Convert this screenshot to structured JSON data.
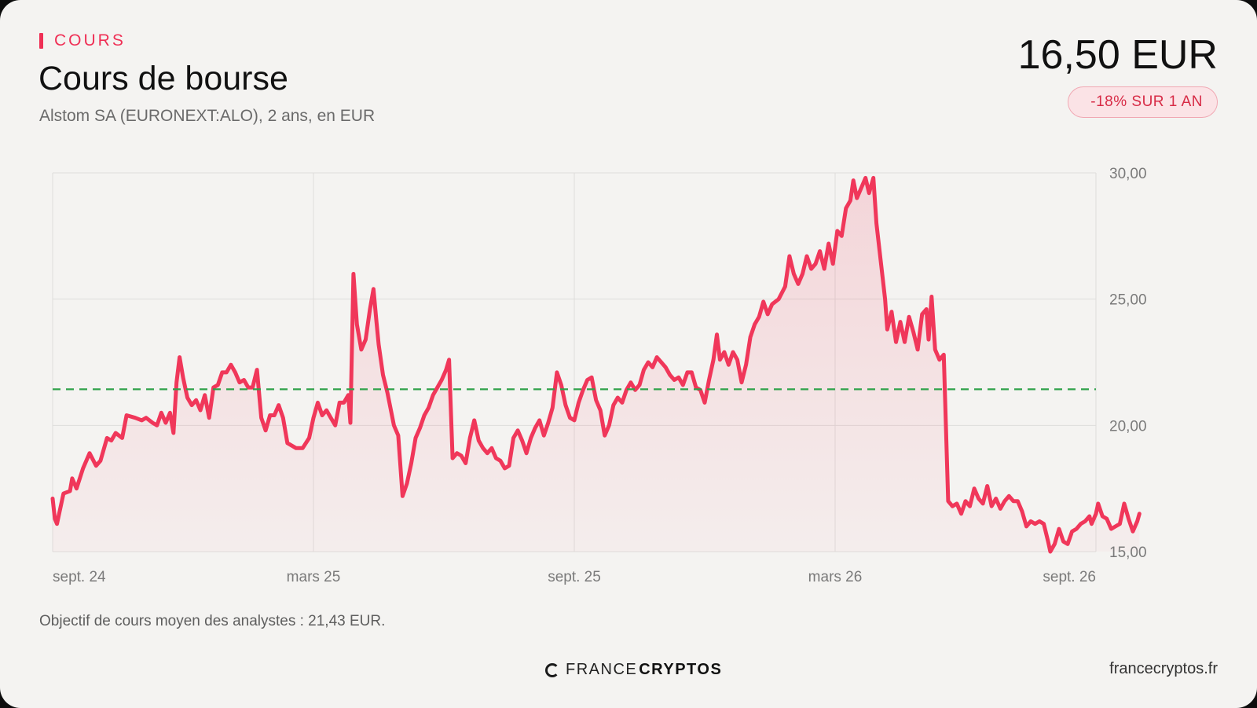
{
  "header": {
    "kicker": "COURS",
    "title": "Cours de bourse",
    "subtitle": "Alstom SA (EURONEXT:ALO), 2 ans, en EUR",
    "price": "16,50 EUR",
    "change_badge": "-18% SUR 1 AN"
  },
  "footer": {
    "note": "Objectif de cours moyen des analystes : 21,43 EUR.",
    "brand_light": "FRANCE",
    "brand_bold": "CRYPTOS",
    "site": "francecryptos.fr"
  },
  "colors": {
    "line": "#f0375a",
    "target_line": "#2ea24a",
    "kicker": "#ef2f55",
    "badge_text": "#d72b46"
  },
  "chart_data": {
    "type": "line",
    "title": "Cours de bourse",
    "xlabel": "",
    "ylabel": "",
    "x_range": [
      0,
      24
    ],
    "ylim": [
      15,
      30
    ],
    "y_ticks": [
      15,
      20,
      25,
      30
    ],
    "y_tick_labels": [
      "15,00",
      "20,00",
      "25,00",
      "30,00"
    ],
    "x_ticks": [
      {
        "x": 0,
        "label": "sept. 24"
      },
      {
        "x": 6,
        "label": "mars 25"
      },
      {
        "x": 12,
        "label": "sept. 25"
      },
      {
        "x": 18,
        "label": "mars 26"
      },
      {
        "x": 24,
        "label": "sept. 26"
      }
    ],
    "grid": true,
    "target_value": 21.43,
    "series": [
      {
        "values": [
          [
            0.0,
            17.1
          ],
          [
            0.05,
            16.3
          ],
          [
            0.1,
            16.1
          ],
          [
            0.25,
            17.3
          ],
          [
            0.4,
            17.4
          ],
          [
            0.45,
            17.9
          ],
          [
            0.55,
            17.5
          ],
          [
            0.7,
            18.3
          ],
          [
            0.85,
            18.9
          ],
          [
            1.0,
            18.4
          ],
          [
            1.1,
            18.6
          ],
          [
            1.25,
            19.5
          ],
          [
            1.35,
            19.4
          ],
          [
            1.45,
            19.7
          ],
          [
            1.6,
            19.5
          ],
          [
            1.7,
            20.4
          ],
          [
            1.9,
            20.3
          ],
          [
            2.05,
            20.2
          ],
          [
            2.15,
            20.3
          ],
          [
            2.3,
            20.1
          ],
          [
            2.4,
            20.0
          ],
          [
            2.5,
            20.5
          ],
          [
            2.6,
            20.1
          ],
          [
            2.7,
            20.5
          ],
          [
            2.78,
            19.7
          ],
          [
            2.85,
            21.7
          ],
          [
            2.92,
            22.7
          ],
          [
            3.0,
            21.9
          ],
          [
            3.1,
            21.1
          ],
          [
            3.2,
            20.8
          ],
          [
            3.3,
            21.0
          ],
          [
            3.4,
            20.6
          ],
          [
            3.5,
            21.2
          ],
          [
            3.6,
            20.3
          ],
          [
            3.7,
            21.5
          ],
          [
            3.8,
            21.6
          ],
          [
            3.9,
            22.1
          ],
          [
            4.0,
            22.1
          ],
          [
            4.1,
            22.4
          ],
          [
            4.2,
            22.1
          ],
          [
            4.3,
            21.7
          ],
          [
            4.4,
            21.8
          ],
          [
            4.5,
            21.5
          ],
          [
            4.6,
            21.5
          ],
          [
            4.7,
            22.2
          ],
          [
            4.8,
            20.3
          ],
          [
            4.9,
            19.8
          ],
          [
            5.0,
            20.4
          ],
          [
            5.1,
            20.4
          ],
          [
            5.2,
            20.8
          ],
          [
            5.3,
            20.3
          ],
          [
            5.4,
            19.3
          ],
          [
            5.6,
            19.1
          ],
          [
            5.75,
            19.1
          ],
          [
            5.9,
            19.5
          ],
          [
            6.0,
            20.3
          ],
          [
            6.1,
            20.9
          ],
          [
            6.2,
            20.4
          ],
          [
            6.3,
            20.6
          ],
          [
            6.4,
            20.3
          ],
          [
            6.5,
            20.0
          ],
          [
            6.6,
            20.9
          ],
          [
            6.7,
            20.9
          ],
          [
            6.8,
            21.2
          ],
          [
            6.85,
            20.1
          ],
          [
            6.92,
            26.0
          ],
          [
            7.0,
            24.0
          ],
          [
            7.1,
            23.0
          ],
          [
            7.2,
            23.4
          ],
          [
            7.3,
            24.6
          ],
          [
            7.38,
            25.4
          ],
          [
            7.45,
            24.1
          ],
          [
            7.5,
            23.2
          ],
          [
            7.6,
            22.0
          ],
          [
            7.7,
            21.3
          ],
          [
            7.85,
            20.0
          ],
          [
            7.95,
            19.6
          ],
          [
            8.05,
            17.2
          ],
          [
            8.15,
            17.7
          ],
          [
            8.25,
            18.5
          ],
          [
            8.35,
            19.5
          ],
          [
            8.45,
            19.9
          ],
          [
            8.55,
            20.4
          ],
          [
            8.65,
            20.7
          ],
          [
            8.75,
            21.2
          ],
          [
            8.85,
            21.5
          ],
          [
            8.95,
            21.8
          ],
          [
            9.05,
            22.2
          ],
          [
            9.12,
            22.6
          ],
          [
            9.2,
            18.7
          ],
          [
            9.3,
            18.9
          ],
          [
            9.4,
            18.8
          ],
          [
            9.5,
            18.5
          ],
          [
            9.6,
            19.5
          ],
          [
            9.7,
            20.2
          ],
          [
            9.8,
            19.4
          ],
          [
            9.9,
            19.1
          ],
          [
            10.0,
            18.9
          ],
          [
            10.1,
            19.1
          ],
          [
            10.2,
            18.7
          ],
          [
            10.3,
            18.6
          ],
          [
            10.4,
            18.3
          ],
          [
            10.5,
            18.4
          ],
          [
            10.6,
            19.5
          ],
          [
            10.7,
            19.8
          ],
          [
            10.8,
            19.4
          ],
          [
            10.9,
            18.9
          ],
          [
            11.0,
            19.5
          ],
          [
            11.1,
            19.9
          ],
          [
            11.2,
            20.2
          ],
          [
            11.3,
            19.6
          ],
          [
            11.4,
            20.1
          ],
          [
            11.5,
            20.7
          ],
          [
            11.6,
            22.1
          ],
          [
            11.7,
            21.6
          ],
          [
            11.8,
            20.8
          ],
          [
            11.9,
            20.3
          ],
          [
            12.0,
            20.2
          ],
          [
            12.1,
            20.9
          ],
          [
            12.2,
            21.4
          ],
          [
            12.3,
            21.8
          ],
          [
            12.4,
            21.9
          ],
          [
            12.5,
            21.0
          ],
          [
            12.6,
            20.6
          ],
          [
            12.7,
            19.6
          ],
          [
            12.8,
            20.0
          ],
          [
            12.9,
            20.8
          ],
          [
            13.0,
            21.1
          ],
          [
            13.1,
            20.9
          ],
          [
            13.2,
            21.4
          ],
          [
            13.3,
            21.7
          ],
          [
            13.4,
            21.4
          ],
          [
            13.5,
            21.6
          ],
          [
            13.6,
            22.2
          ],
          [
            13.7,
            22.5
          ],
          [
            13.8,
            22.3
          ],
          [
            13.9,
            22.7
          ],
          [
            14.0,
            22.5
          ],
          [
            14.1,
            22.3
          ],
          [
            14.2,
            22.0
          ],
          [
            14.3,
            21.8
          ],
          [
            14.4,
            21.9
          ],
          [
            14.5,
            21.6
          ],
          [
            14.6,
            22.1
          ],
          [
            14.7,
            22.1
          ],
          [
            14.8,
            21.5
          ],
          [
            14.9,
            21.4
          ],
          [
            15.0,
            20.9
          ],
          [
            15.1,
            21.8
          ],
          [
            15.2,
            22.6
          ],
          [
            15.28,
            23.6
          ],
          [
            15.35,
            22.6
          ],
          [
            15.45,
            22.9
          ],
          [
            15.55,
            22.4
          ],
          [
            15.65,
            22.9
          ],
          [
            15.75,
            22.6
          ],
          [
            15.85,
            21.7
          ],
          [
            15.95,
            22.4
          ],
          [
            16.05,
            23.5
          ],
          [
            16.15,
            24.0
          ],
          [
            16.25,
            24.3
          ],
          [
            16.35,
            24.9
          ],
          [
            16.45,
            24.4
          ],
          [
            16.55,
            24.8
          ],
          [
            16.7,
            25.0
          ],
          [
            16.85,
            25.5
          ],
          [
            16.95,
            26.7
          ],
          [
            17.05,
            26.0
          ],
          [
            17.15,
            25.6
          ],
          [
            17.25,
            26.0
          ],
          [
            17.35,
            26.7
          ],
          [
            17.45,
            26.2
          ],
          [
            17.55,
            26.4
          ],
          [
            17.65,
            26.9
          ],
          [
            17.75,
            26.2
          ],
          [
            17.85,
            27.2
          ],
          [
            17.95,
            26.4
          ],
          [
            18.05,
            27.7
          ],
          [
            18.15,
            27.5
          ],
          [
            18.25,
            28.6
          ],
          [
            18.35,
            28.9
          ],
          [
            18.42,
            29.7
          ],
          [
            18.5,
            29.0
          ],
          [
            18.6,
            29.4
          ],
          [
            18.7,
            29.8
          ],
          [
            18.78,
            29.2
          ],
          [
            18.88,
            29.8
          ],
          [
            18.95,
            28.0
          ],
          [
            19.05,
            26.5
          ],
          [
            19.15,
            25.0
          ],
          [
            19.2,
            23.8
          ],
          [
            19.3,
            24.5
          ],
          [
            19.4,
            23.3
          ],
          [
            19.5,
            24.1
          ],
          [
            19.6,
            23.3
          ],
          [
            19.7,
            24.3
          ],
          [
            19.8,
            23.7
          ],
          [
            19.9,
            23.0
          ],
          [
            20.0,
            24.4
          ],
          [
            20.1,
            24.6
          ],
          [
            20.15,
            23.4
          ],
          [
            20.22,
            25.1
          ],
          [
            20.3,
            23.0
          ],
          [
            20.4,
            22.6
          ],
          [
            20.5,
            22.8
          ],
          [
            20.6,
            17.0
          ],
          [
            20.7,
            16.8
          ],
          [
            20.8,
            16.9
          ],
          [
            20.9,
            16.5
          ],
          [
            21.0,
            17.0
          ],
          [
            21.1,
            16.8
          ],
          [
            21.2,
            17.5
          ],
          [
            21.3,
            17.1
          ],
          [
            21.4,
            16.9
          ],
          [
            21.5,
            17.6
          ],
          [
            21.6,
            16.8
          ],
          [
            21.7,
            17.1
          ],
          [
            21.8,
            16.7
          ],
          [
            21.9,
            17.0
          ],
          [
            22.0,
            17.2
          ],
          [
            22.1,
            17.0
          ],
          [
            22.2,
            17.0
          ],
          [
            22.3,
            16.6
          ],
          [
            22.4,
            16.0
          ],
          [
            22.5,
            16.2
          ],
          [
            22.6,
            16.1
          ],
          [
            22.7,
            16.2
          ],
          [
            22.8,
            16.1
          ],
          [
            22.9,
            15.4
          ],
          [
            22.95,
            15.0
          ],
          [
            23.05,
            15.3
          ],
          [
            23.15,
            15.9
          ],
          [
            23.25,
            15.4
          ],
          [
            23.35,
            15.3
          ],
          [
            23.45,
            15.8
          ],
          [
            23.55,
            15.9
          ],
          [
            23.65,
            16.1
          ],
          [
            23.75,
            16.2
          ],
          [
            23.85,
            16.4
          ],
          [
            23.9,
            16.1
          ],
          [
            24.0,
            16.5
          ],
          [
            24.05,
            16.9
          ],
          [
            24.15,
            16.4
          ],
          [
            24.25,
            16.3
          ],
          [
            24.35,
            15.9
          ],
          [
            24.45,
            16.0
          ],
          [
            24.55,
            16.1
          ],
          [
            24.65,
            16.9
          ],
          [
            24.75,
            16.3
          ],
          [
            24.85,
            15.8
          ],
          [
            24.95,
            16.2
          ],
          [
            25.0,
            16.5
          ]
        ]
      }
    ]
  }
}
